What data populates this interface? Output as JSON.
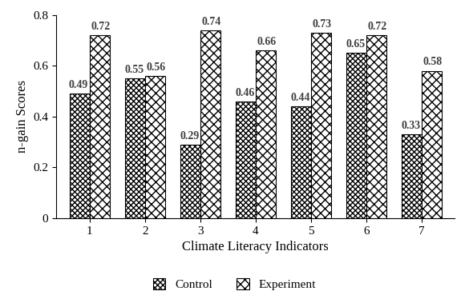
{
  "chart_data": {
    "type": "bar",
    "x_label": "Climate Literacy Indicators",
    "y_label": "n-gain Scores",
    "categories": [
      "1",
      "2",
      "3",
      "4",
      "5",
      "6",
      "7"
    ],
    "series": [
      {
        "name": "Control",
        "color": "#ffffff",
        "values": [
          0.49,
          0.55,
          0.29,
          0.46,
          0.44,
          0.65,
          0.33
        ]
      },
      {
        "name": "Experiment",
        "color": "#ffffff",
        "values": [
          0.72,
          0.56,
          0.74,
          0.66,
          0.73,
          0.72,
          0.58
        ]
      }
    ],
    "ylim": [
      0,
      0.8
    ],
    "yticks": [
      0,
      0.2,
      0.4,
      0.6,
      0.8
    ],
    "data_labels": true,
    "legend": "lower center",
    "grid": false
  }
}
